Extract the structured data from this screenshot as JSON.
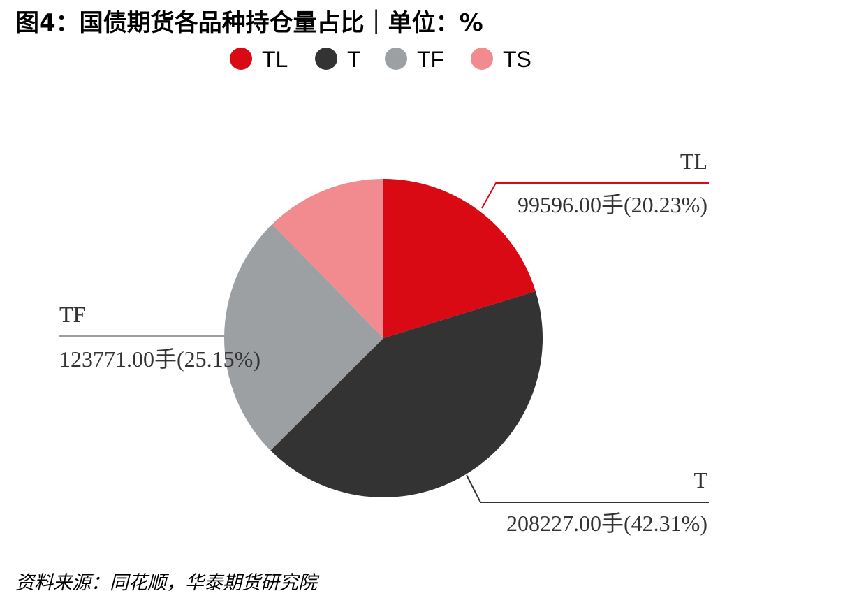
{
  "chart_data": {
    "type": "pie",
    "title": "图4：国债期货各品种持仓量占比｜单位：%",
    "categories": [
      "TL",
      "T",
      "TF",
      "TS"
    ],
    "values": [
      99596,
      208227,
      123771,
      60606
    ],
    "value_labels": [
      "99596.00手(20.23%)",
      "208227.00手(42.31%)",
      "123771.00手(25.15%)",
      null
    ],
    "colors": [
      "#d90a14",
      "#333333",
      "#9da0a3",
      "#f28b8f"
    ],
    "legend": "top",
    "source": "资料来源：同花顺，华泰期货研究院"
  }
}
